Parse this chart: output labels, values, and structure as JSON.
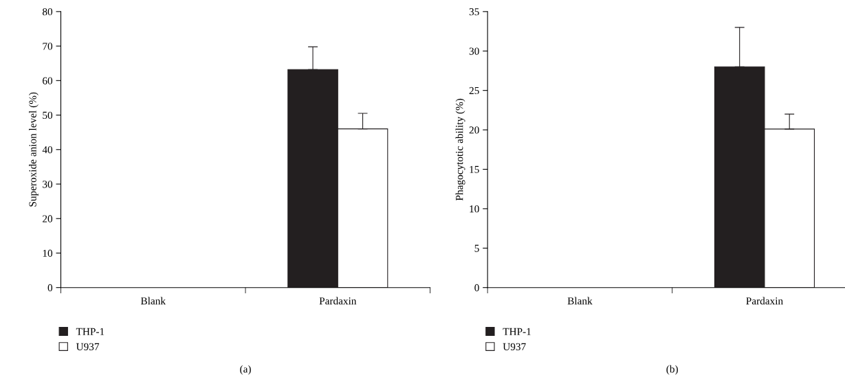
{
  "chart_data": [
    {
      "type": "bar",
      "ylabel": "Superoxide anion level (%)",
      "categories": [
        "Blank",
        "Pardaxin"
      ],
      "ylim": [
        0,
        80
      ],
      "yticks": [
        0,
        10,
        20,
        30,
        40,
        50,
        60,
        70,
        80
      ],
      "grid": false,
      "legend": "bottom left",
      "annotations": [
        "(a)"
      ],
      "series": [
        {
          "name": "THP-1",
          "color": "#231f20",
          "values": [
            0,
            63.2
          ],
          "errors": [
            null,
            [
              63.2,
              69.8
            ]
          ]
        },
        {
          "name": "U937",
          "color": "#ffffff",
          "values": [
            0,
            46
          ],
          "errors": [
            null,
            [
              46,
              50.5
            ]
          ]
        }
      ]
    },
    {
      "type": "bar",
      "ylabel": "Phagocytotic ability (%)",
      "categories": [
        "Blank",
        "Pardaxin"
      ],
      "ylim": [
        0,
        35
      ],
      "yticks": [
        0,
        5,
        10,
        15,
        20,
        25,
        30,
        35
      ],
      "grid": false,
      "legend": "bottom left",
      "annotations": [
        "(b)"
      ],
      "series": [
        {
          "name": "THP-1",
          "color": "#231f20",
          "values": [
            0,
            28
          ],
          "errors": [
            null,
            [
              28,
              33
            ]
          ]
        },
        {
          "name": "U937",
          "color": "#ffffff",
          "values": [
            0,
            20.1
          ],
          "errors": [
            null,
            [
              20.1,
              22
            ]
          ]
        }
      ]
    }
  ]
}
